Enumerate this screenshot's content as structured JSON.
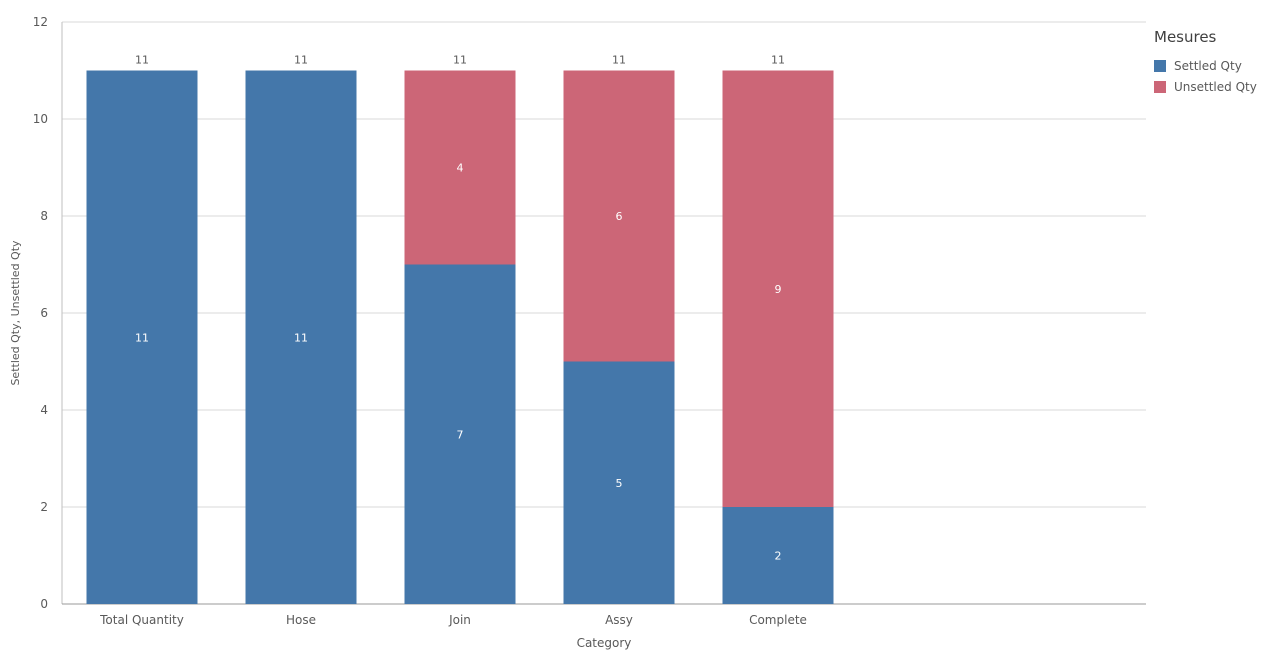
{
  "chart_data": {
    "type": "bar",
    "stacked": true,
    "categories": [
      "Total Quantity",
      "Hose",
      "Join",
      "Assy",
      "Complete"
    ],
    "series": [
      {
        "name": "Settled Qty",
        "values": [
          11,
          11,
          7,
          5,
          2
        ],
        "color": "#4477aa"
      },
      {
        "name": "Unsettled Qty",
        "values": [
          0,
          0,
          4,
          6,
          9
        ],
        "color": "#cc6677"
      }
    ],
    "totals": [
      11,
      11,
      11,
      11,
      11
    ],
    "xlabel": "Category",
    "ylabel": "Settled Qty, Unsettled Qty",
    "ylim": [
      0,
      12
    ],
    "yticks": [
      0,
      2,
      4,
      6,
      8,
      10,
      12
    ],
    "grid": true,
    "legend": {
      "title": "Mesures",
      "placement": "top-right"
    }
  }
}
